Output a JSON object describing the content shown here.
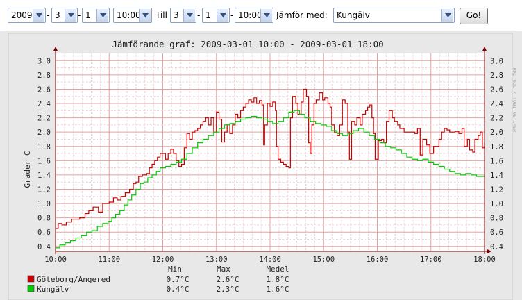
{
  "controls": {
    "from_year": "2009",
    "from_month": "3",
    "from_day": "1",
    "from_time": "10:00",
    "dash1": "-",
    "dash2": "-",
    "dash3": "-",
    "dash4": "-",
    "till_label": "Till",
    "to_month": "3",
    "to_day": "1",
    "to_time": "10:00",
    "compare_label": "Jämför med:",
    "compare_value": "Kungälv",
    "go_label": "Go!"
  },
  "watermark": "RRDTOOL / TOBI OETIKER",
  "stats": {
    "headers": [
      "Min",
      "Max",
      "Medel"
    ],
    "rows": [
      {
        "name": "Göteborg/Angered",
        "min": "0.7°C",
        "max": "2.6°C",
        "mean": "1.8°C"
      },
      {
        "name": "Kungälv",
        "min": "0.4°C",
        "max": "2.3°C",
        "mean": "1.6°C"
      }
    ]
  },
  "colors": {
    "series1": "#cc0000",
    "series2": "#00cc00",
    "grid_minor": "#f0d0d0",
    "grid_major": "#e8a0a0",
    "axis": "#800000",
    "background": "#e8e8e8",
    "plot_bg": "#ffffff"
  },
  "chart_data": {
    "type": "line",
    "title": "Jämförande graf: 2009-03-01 10:00 - 2009-03-01 18:00",
    "xlabel": "",
    "ylabel": "Grader C",
    "x_ticks": [
      "10:00",
      "11:00",
      "12:00",
      "13:00",
      "14:00",
      "15:00",
      "16:00",
      "17:00",
      "18:00"
    ],
    "y_ticks": [
      "0.4",
      "0.6",
      "0.8",
      "1.0",
      "1.2",
      "1.4",
      "1.6",
      "1.8",
      "2.0",
      "2.2",
      "2.4",
      "2.6",
      "2.8",
      "3.0"
    ],
    "xlim": [
      0,
      8
    ],
    "ylim": [
      0.33,
      3.1
    ],
    "grid": true,
    "step": true,
    "series": [
      {
        "name": "Göteborg/Angered",
        "color": "#cc0000",
        "points": [
          [
            0.0,
            0.65
          ],
          [
            0.05,
            0.72
          ],
          [
            0.12,
            0.7
          ],
          [
            0.2,
            0.74
          ],
          [
            0.3,
            0.78
          ],
          [
            0.45,
            0.8
          ],
          [
            0.55,
            0.86
          ],
          [
            0.62,
            0.9
          ],
          [
            0.7,
            0.95
          ],
          [
            0.8,
            0.88
          ],
          [
            0.88,
            1.0
          ],
          [
            1.0,
            1.02
          ],
          [
            1.08,
            1.08
          ],
          [
            1.15,
            1.05
          ],
          [
            1.22,
            1.1
          ],
          [
            1.3,
            1.15
          ],
          [
            1.38,
            1.2
          ],
          [
            1.45,
            1.28
          ],
          [
            1.5,
            1.3
          ],
          [
            1.55,
            1.38
          ],
          [
            1.62,
            1.4
          ],
          [
            1.7,
            1.42
          ],
          [
            1.75,
            1.5
          ],
          [
            1.8,
            1.55
          ],
          [
            1.85,
            1.6
          ],
          [
            1.9,
            1.65
          ],
          [
            1.95,
            1.7
          ],
          [
            2.0,
            1.7
          ],
          [
            2.05,
            1.62
          ],
          [
            2.1,
            1.7
          ],
          [
            2.15,
            1.76
          ],
          [
            2.2,
            1.7
          ],
          [
            2.25,
            1.6
          ],
          [
            2.3,
            1.52
          ],
          [
            2.35,
            1.55
          ],
          [
            2.4,
            1.78
          ],
          [
            2.45,
            1.98
          ],
          [
            2.5,
            1.9
          ],
          [
            2.55,
            2.0
          ],
          [
            2.6,
            2.02
          ],
          [
            2.65,
            2.05
          ],
          [
            2.7,
            2.1
          ],
          [
            2.75,
            2.15
          ],
          [
            2.8,
            2.2
          ],
          [
            2.85,
            2.1
          ],
          [
            2.9,
            2.2
          ],
          [
            2.95,
            2.0
          ],
          [
            3.0,
            2.28
          ],
          [
            3.05,
            2.18
          ],
          [
            3.1,
            1.86
          ],
          [
            3.15,
            2.0
          ],
          [
            3.2,
            2.1
          ],
          [
            3.25,
            1.98
          ],
          [
            3.3,
            2.1
          ],
          [
            3.35,
            2.25
          ],
          [
            3.4,
            2.2
          ],
          [
            3.45,
            2.3
          ],
          [
            3.5,
            2.35
          ],
          [
            3.55,
            2.4
          ],
          [
            3.6,
            2.45
          ],
          [
            3.65,
            2.42
          ],
          [
            3.7,
            2.48
          ],
          [
            3.75,
            2.4
          ],
          [
            3.8,
            2.44
          ],
          [
            3.85,
            2.38
          ],
          [
            3.88,
            1.82
          ],
          [
            3.9,
            2.1
          ],
          [
            3.95,
            2.4
          ],
          [
            4.0,
            2.36
          ],
          [
            4.05,
            2.42
          ],
          [
            4.1,
            2.3
          ],
          [
            4.12,
            1.8
          ],
          [
            4.15,
            1.62
          ],
          [
            4.2,
            1.58
          ],
          [
            4.25,
            1.55
          ],
          [
            4.3,
            1.52
          ],
          [
            4.35,
            1.5
          ],
          [
            4.38,
            2.2
          ],
          [
            4.42,
            2.5
          ],
          [
            4.48,
            2.4
          ],
          [
            4.52,
            2.25
          ],
          [
            4.58,
            2.42
          ],
          [
            4.62,
            2.6
          ],
          [
            4.68,
            2.5
          ],
          [
            4.72,
            1.85
          ],
          [
            4.75,
            1.7
          ],
          [
            4.78,
            2.1
          ],
          [
            4.82,
            2.4
          ],
          [
            4.86,
            2.45
          ],
          [
            4.92,
            2.55
          ],
          [
            4.98,
            2.45
          ],
          [
            5.02,
            2.48
          ],
          [
            5.08,
            2.4
          ],
          [
            5.12,
            2.35
          ],
          [
            5.15,
            2.1
          ],
          [
            5.2,
            2.0
          ],
          [
            5.25,
            1.95
          ],
          [
            5.3,
            2.1
          ],
          [
            5.35,
            2.45
          ],
          [
            5.4,
            2.4
          ],
          [
            5.45,
            2.0
          ],
          [
            5.48,
            1.62
          ],
          [
            5.52,
            2.15
          ],
          [
            5.58,
            2.1
          ],
          [
            5.62,
            2.2
          ],
          [
            5.68,
            2.1
          ],
          [
            5.72,
            2.25
          ],
          [
            5.78,
            2.3
          ],
          [
            5.82,
            2.35
          ],
          [
            5.86,
            2.38
          ],
          [
            5.9,
            2.2
          ],
          [
            5.93,
            1.98
          ],
          [
            5.96,
            1.62
          ],
          [
            6.02,
            1.88
          ],
          [
            6.08,
            1.9
          ],
          [
            6.12,
            1.85
          ],
          [
            6.17,
            2.15
          ],
          [
            6.22,
            2.3
          ],
          [
            6.28,
            2.2
          ],
          [
            6.32,
            2.15
          ],
          [
            6.38,
            2.1
          ],
          [
            6.42,
            2.05
          ],
          [
            6.5,
            2.0
          ],
          [
            6.6,
            2.0
          ],
          [
            6.7,
            1.98
          ],
          [
            6.75,
            2.05
          ],
          [
            6.8,
            1.68
          ],
          [
            6.85,
            1.9
          ],
          [
            6.92,
            1.82
          ],
          [
            6.98,
            1.7
          ],
          [
            7.05,
            1.8
          ],
          [
            7.15,
            1.9
          ],
          [
            7.2,
            2.0
          ],
          [
            7.25,
            2.05
          ],
          [
            7.3,
            2.03
          ],
          [
            7.35,
            2.0
          ],
          [
            7.45,
            2.01
          ],
          [
            7.52,
            1.98
          ],
          [
            7.58,
            2.05
          ],
          [
            7.62,
            1.8
          ],
          [
            7.68,
            1.9
          ],
          [
            7.72,
            1.75
          ],
          [
            7.78,
            1.72
          ],
          [
            7.82,
            1.9
          ],
          [
            7.88,
            1.95
          ],
          [
            7.92,
            2.0
          ],
          [
            7.96,
            1.78
          ],
          [
            8.0,
            1.85
          ]
        ]
      },
      {
        "name": "Kungälv",
        "color": "#00cc00",
        "points": [
          [
            0.0,
            0.38
          ],
          [
            0.08,
            0.42
          ],
          [
            0.18,
            0.45
          ],
          [
            0.28,
            0.48
          ],
          [
            0.38,
            0.52
          ],
          [
            0.48,
            0.55
          ],
          [
            0.58,
            0.6
          ],
          [
            0.68,
            0.62
          ],
          [
            0.78,
            0.68
          ],
          [
            0.88,
            0.72
          ],
          [
            0.98,
            0.75
          ],
          [
            1.05,
            0.8
          ],
          [
            1.12,
            0.85
          ],
          [
            1.2,
            0.9
          ],
          [
            1.28,
            0.98
          ],
          [
            1.35,
            1.05
          ],
          [
            1.42,
            1.12
          ],
          [
            1.5,
            1.2
          ],
          [
            1.58,
            1.28
          ],
          [
            1.65,
            1.3
          ],
          [
            1.72,
            1.36
          ],
          [
            1.8,
            1.4
          ],
          [
            1.88,
            1.45
          ],
          [
            1.95,
            1.5
          ],
          [
            2.05,
            1.52
          ],
          [
            2.15,
            1.55
          ],
          [
            2.25,
            1.58
          ],
          [
            2.35,
            1.62
          ],
          [
            2.45,
            1.7
          ],
          [
            2.55,
            1.78
          ],
          [
            2.65,
            1.85
          ],
          [
            2.75,
            1.9
          ],
          [
            2.85,
            1.95
          ],
          [
            2.95,
            2.0
          ],
          [
            3.05,
            2.05
          ],
          [
            3.15,
            2.1
          ],
          [
            3.25,
            2.12
          ],
          [
            3.35,
            2.15
          ],
          [
            3.45,
            2.18
          ],
          [
            3.55,
            2.2
          ],
          [
            3.65,
            2.22
          ],
          [
            3.75,
            2.2
          ],
          [
            3.85,
            2.18
          ],
          [
            3.95,
            2.15
          ],
          [
            4.05,
            2.12
          ],
          [
            4.15,
            2.15
          ],
          [
            4.25,
            2.2
          ],
          [
            4.35,
            2.28
          ],
          [
            4.45,
            2.3
          ],
          [
            4.55,
            2.25
          ],
          [
            4.65,
            2.2
          ],
          [
            4.75,
            2.15
          ],
          [
            4.85,
            2.12
          ],
          [
            4.95,
            2.1
          ],
          [
            5.05,
            2.08
          ],
          [
            5.15,
            2.02
          ],
          [
            5.25,
            1.98
          ],
          [
            5.35,
            1.95
          ],
          [
            5.45,
            1.98
          ],
          [
            5.55,
            2.02
          ],
          [
            5.65,
            2.05
          ],
          [
            5.75,
            2.0
          ],
          [
            5.85,
            1.95
          ],
          [
            5.95,
            1.9
          ],
          [
            6.05,
            1.85
          ],
          [
            6.15,
            1.8
          ],
          [
            6.25,
            1.78
          ],
          [
            6.35,
            1.75
          ],
          [
            6.45,
            1.7
          ],
          [
            6.55,
            1.65
          ],
          [
            6.65,
            1.62
          ],
          [
            6.75,
            1.6
          ],
          [
            6.85,
            1.62
          ],
          [
            6.95,
            1.58
          ],
          [
            7.05,
            1.55
          ],
          [
            7.15,
            1.52
          ],
          [
            7.25,
            1.48
          ],
          [
            7.35,
            1.45
          ],
          [
            7.45,
            1.42
          ],
          [
            7.55,
            1.4
          ],
          [
            7.65,
            1.42
          ],
          [
            7.75,
            1.4
          ],
          [
            7.85,
            1.38
          ],
          [
            8.0,
            1.38
          ]
        ]
      }
    ]
  }
}
